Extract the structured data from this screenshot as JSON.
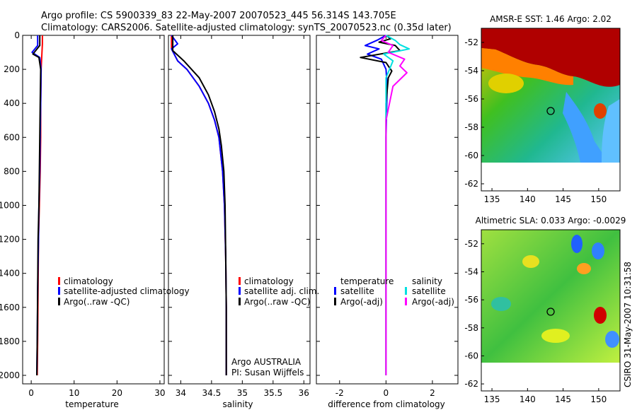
{
  "header": {
    "line1": "Argo profile: CS 5900339_83 22-May-2007 20070523_445 56.314S 143.705E",
    "line2": "Climatology: CARS2006. Satellite-adjusted climatology: synTS_20070523.nc (0.35d later)"
  },
  "footer_stamp": "CSIRO 31-May-2007 10:31:58",
  "chart_data": [
    {
      "id": "temperature",
      "type": "line",
      "xlabel": "temperature",
      "ylabel": "",
      "xlim": [
        -2,
        31
      ],
      "ylim": [
        2050,
        0
      ],
      "xticks": [
        0,
        10,
        20,
        30
      ],
      "yticks": [
        0,
        200,
        400,
        600,
        800,
        1000,
        1200,
        1400,
        1600,
        1800,
        2000
      ],
      "legend": [
        "climatology",
        "satellite-adjusted climatology",
        "Argo(..raw -QC)"
      ],
      "series": [
        {
          "name": "climatology",
          "color": "#ff0000",
          "x": [
            2.6,
            2.6,
            2.5,
            2.4,
            2.3,
            2.2,
            2.2,
            2.1,
            1.9,
            1.7,
            1.6,
            1.5,
            1.4
          ],
          "y": [
            0,
            50,
            100,
            150,
            200,
            400,
            600,
            800,
            1000,
            1200,
            1500,
            1800,
            2000
          ]
        },
        {
          "name": "satellite-adjusted climatology",
          "color": "#0000ff",
          "x": [
            1.5,
            1.5,
            0.2,
            2.0,
            2.3,
            2.2,
            2.1,
            2.0,
            1.8,
            1.7,
            1.5,
            1.4,
            1.3
          ],
          "y": [
            0,
            60,
            100,
            130,
            200,
            400,
            600,
            800,
            1000,
            1200,
            1500,
            1800,
            2000
          ]
        },
        {
          "name": "Argo(..raw -QC)",
          "color": "#000000",
          "x": [
            2.0,
            2.0,
            0.4,
            1.8,
            2.2,
            2.1,
            2.0,
            1.9,
            1.8,
            1.6,
            1.5,
            1.4,
            1.3
          ],
          "y": [
            0,
            60,
            110,
            130,
            200,
            400,
            600,
            800,
            1000,
            1200,
            1500,
            1800,
            2000
          ]
        }
      ]
    },
    {
      "id": "salinity",
      "type": "line",
      "xlabel": "salinity",
      "ylabel": "",
      "xlim": [
        33.8,
        36.1
      ],
      "ylim": [
        2050,
        0
      ],
      "xticks": [
        34,
        34.5,
        35,
        35.5,
        36
      ],
      "legend": [
        "climatology",
        "satellite adj. clim.",
        "Argo(..raw -QC)"
      ],
      "annotation": [
        "Argo AUSTRALIA",
        "PI: Susan Wijffels"
      ],
      "series": [
        {
          "name": "climatology",
          "color": "#ff0000",
          "x": [
            33.85,
            33.85,
            33.95,
            34.1,
            34.3,
            34.45,
            34.55,
            34.62,
            34.68,
            34.71,
            34.73,
            34.74,
            34.74
          ],
          "y": [
            0,
            80,
            150,
            200,
            300,
            400,
            500,
            600,
            800,
            1000,
            1300,
            1600,
            2000
          ]
        },
        {
          "name": "satellite adj. clim.",
          "color": "#0000ff",
          "x": [
            33.85,
            33.95,
            33.85,
            33.95,
            34.1,
            34.3,
            34.45,
            34.55,
            34.62,
            34.68,
            34.71,
            34.73,
            34.74,
            34.74
          ],
          "y": [
            0,
            50,
            80,
            150,
            200,
            300,
            400,
            500,
            600,
            800,
            1000,
            1300,
            1600,
            2000
          ]
        },
        {
          "name": "Argo(..raw -QC)",
          "color": "#000000",
          "x": [
            33.87,
            33.87,
            34.05,
            34.3,
            34.45,
            34.55,
            34.62,
            34.66,
            34.7,
            34.72,
            34.73,
            34.74,
            34.74
          ],
          "y": [
            0,
            90,
            150,
            250,
            350,
            450,
            550,
            650,
            800,
            1000,
            1300,
            1600,
            2000
          ]
        }
      ]
    },
    {
      "id": "difference",
      "type": "line",
      "xlabel": "difference from climatology",
      "ylabel": "",
      "xlim": [
        -3,
        3.1
      ],
      "ylim": [
        2050,
        0
      ],
      "xticks": [
        -2,
        0,
        2
      ],
      "legend_left_title": "temperature",
      "legend_left": [
        "satellite",
        "Argo(-adj)"
      ],
      "legend_right_title": "salinity",
      "legend_right": [
        "satellite",
        "Argo(-adj)"
      ],
      "series": [
        {
          "name": "temperature satellite",
          "color": "#0000ff",
          "x": [
            0,
            -0.4,
            -0.9,
            -0.3,
            -0.8,
            -0.2,
            0,
            0.05,
            0,
            0
          ],
          "y": [
            0,
            30,
            60,
            80,
            110,
            140,
            200,
            300,
            600,
            2000
          ]
        },
        {
          "name": "temperature Argo(-adj)",
          "color": "#000000",
          "x": [
            0,
            0.2,
            -0.3,
            0.4,
            0.6,
            -1.1,
            0,
            0.1,
            0.25,
            0.1,
            0,
            0,
            0
          ],
          "y": [
            0,
            20,
            40,
            60,
            90,
            130,
            160,
            180,
            210,
            250,
            400,
            1000,
            2000
          ]
        },
        {
          "name": "salinity satellite",
          "color": "#00e0e0",
          "x": [
            0,
            0.4,
            0.6,
            1.0,
            -0.1,
            0.3,
            0,
            0
          ],
          "y": [
            0,
            30,
            55,
            80,
            110,
            150,
            250,
            2000
          ]
        },
        {
          "name": "salinity Argo(-adj)",
          "color": "#ff00ff",
          "x": [
            0,
            -0.2,
            0.3,
            0.1,
            0.8,
            0.6,
            0.9,
            0.3,
            0,
            0
          ],
          "y": [
            0,
            30,
            60,
            100,
            140,
            180,
            220,
            300,
            500,
            2000
          ]
        }
      ]
    }
  ],
  "maps": [
    {
      "title": "AMSR-E SST: 1.46 Argo: 2.02",
      "xticks": [
        "135",
        "140",
        "145",
        "150"
      ],
      "yticks": [
        "-52",
        "-54",
        "-56",
        "-58",
        "-60",
        "-62"
      ],
      "float_marker_lon": 143.7,
      "float_marker_lat": -56.3
    },
    {
      "title": "Altimetric SLA: 0.033 Argo: -0.0029",
      "xticks": [
        "135",
        "140",
        "145",
        "150"
      ],
      "yticks": [
        "-52",
        "-54",
        "-56",
        "-58",
        "-60",
        "-62"
      ],
      "float_marker_lon": 143.7,
      "float_marker_lat": -56.3
    }
  ]
}
